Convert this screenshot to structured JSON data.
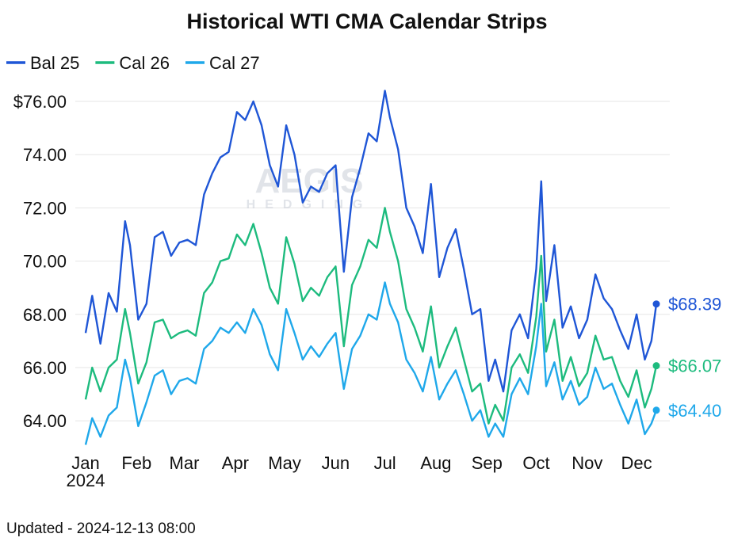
{
  "footer": "Updated - 2024-12-13 08:00",
  "watermark": {
    "line1": "AEGIS",
    "line2": "HEDGING"
  },
  "chart_data": {
    "type": "line",
    "title": "Historical WTI CMA Calendar Strips",
    "xlabel": "",
    "ylabel": "",
    "legend_position": "top-left",
    "grid": true,
    "x_range": [
      "2024-01-01",
      "2024-12-13"
    ],
    "ylim": [
      62.9,
      76.6
    ],
    "y_ticks": [
      64,
      66,
      68,
      70,
      72,
      74,
      76
    ],
    "y_tick_labels": [
      "64.00",
      "66.00",
      "68.00",
      "70.00",
      "72.00",
      "74.00",
      "$76.00"
    ],
    "x_ticks": [
      {
        "date": "2024-01-01",
        "label": "Jan",
        "sublabel": "2024"
      },
      {
        "date": "2024-02-01",
        "label": "Feb"
      },
      {
        "date": "2024-03-01",
        "label": "Mar"
      },
      {
        "date": "2024-04-01",
        "label": "Apr"
      },
      {
        "date": "2024-05-01",
        "label": "May"
      },
      {
        "date": "2024-06-01",
        "label": "Jun"
      },
      {
        "date": "2024-07-01",
        "label": "Jul"
      },
      {
        "date": "2024-08-01",
        "label": "Aug"
      },
      {
        "date": "2024-09-01",
        "label": "Sep"
      },
      {
        "date": "2024-10-01",
        "label": "Oct"
      },
      {
        "date": "2024-11-01",
        "label": "Nov"
      },
      {
        "date": "2024-12-01",
        "label": "Dec"
      }
    ],
    "x": [
      "2024-01-01",
      "2024-01-05",
      "2024-01-10",
      "2024-01-15",
      "2024-01-20",
      "2024-01-25",
      "2024-01-28",
      "2024-02-02",
      "2024-02-07",
      "2024-02-12",
      "2024-02-17",
      "2024-02-22",
      "2024-02-27",
      "2024-03-03",
      "2024-03-08",
      "2024-03-13",
      "2024-03-18",
      "2024-03-23",
      "2024-03-28",
      "2024-04-02",
      "2024-04-07",
      "2024-04-12",
      "2024-04-17",
      "2024-04-22",
      "2024-04-27",
      "2024-05-02",
      "2024-05-07",
      "2024-05-12",
      "2024-05-17",
      "2024-05-22",
      "2024-05-27",
      "2024-06-01",
      "2024-06-06",
      "2024-06-11",
      "2024-06-16",
      "2024-06-21",
      "2024-06-26",
      "2024-07-01",
      "2024-07-04",
      "2024-07-09",
      "2024-07-14",
      "2024-07-19",
      "2024-07-24",
      "2024-07-29",
      "2024-08-03",
      "2024-08-08",
      "2024-08-13",
      "2024-08-18",
      "2024-08-23",
      "2024-08-28",
      "2024-09-02",
      "2024-09-06",
      "2024-09-11",
      "2024-09-16",
      "2024-09-21",
      "2024-09-26",
      "2024-10-01",
      "2024-10-04",
      "2024-10-07",
      "2024-10-12",
      "2024-10-17",
      "2024-10-22",
      "2024-10-27",
      "2024-11-01",
      "2024-11-06",
      "2024-11-11",
      "2024-11-16",
      "2024-11-21",
      "2024-11-26",
      "2024-12-01",
      "2024-12-06",
      "2024-12-10",
      "2024-12-13"
    ],
    "series": [
      {
        "name": "Bal 25",
        "color": "#1f56d6",
        "end_label": "$68.39",
        "values": [
          67.3,
          68.7,
          66.9,
          68.8,
          68.1,
          71.5,
          70.6,
          67.8,
          68.4,
          70.9,
          71.1,
          70.2,
          70.7,
          70.8,
          70.6,
          72.5,
          73.3,
          73.9,
          74.1,
          75.6,
          75.3,
          76.0,
          75.1,
          73.6,
          72.8,
          75.1,
          74.0,
          72.2,
          72.8,
          72.6,
          73.3,
          73.6,
          69.6,
          72.4,
          73.5,
          74.8,
          74.5,
          76.4,
          75.4,
          74.2,
          72.0,
          71.3,
          70.3,
          72.9,
          69.4,
          70.5,
          71.2,
          69.7,
          68.0,
          68.2,
          65.5,
          66.3,
          65.1,
          67.4,
          68.0,
          67.1,
          69.7,
          73.0,
          68.5,
          70.6,
          67.5,
          68.3,
          67.1,
          67.8,
          69.5,
          68.6,
          68.2,
          67.4,
          66.7,
          68.0,
          66.3,
          67.0,
          68.39
        ]
      },
      {
        "name": "Cal 26",
        "color": "#1dbb7e",
        "end_label": "$66.07",
        "values": [
          64.8,
          66.0,
          65.1,
          66.0,
          66.3,
          68.2,
          67.3,
          65.4,
          66.2,
          67.7,
          67.8,
          67.1,
          67.3,
          67.4,
          67.2,
          68.8,
          69.2,
          70.0,
          70.1,
          71.0,
          70.6,
          71.4,
          70.3,
          69.0,
          68.4,
          70.9,
          69.9,
          68.5,
          69.0,
          68.7,
          69.4,
          69.8,
          66.8,
          69.1,
          69.8,
          70.8,
          70.5,
          72.0,
          71.1,
          70.0,
          68.2,
          67.5,
          66.6,
          68.3,
          66.0,
          66.8,
          67.5,
          66.3,
          65.1,
          65.4,
          63.9,
          64.6,
          64.0,
          66.0,
          66.5,
          65.8,
          67.9,
          70.2,
          66.6,
          67.8,
          65.5,
          66.4,
          65.3,
          65.8,
          67.2,
          66.3,
          66.4,
          65.5,
          64.9,
          65.9,
          64.5,
          65.2,
          66.07
        ]
      },
      {
        "name": "Cal 27",
        "color": "#1fa8ea",
        "end_label": "$64.40",
        "values": [
          63.1,
          64.1,
          63.4,
          64.2,
          64.5,
          66.3,
          65.6,
          63.8,
          64.7,
          65.7,
          65.9,
          65.0,
          65.5,
          65.6,
          65.4,
          66.7,
          67.0,
          67.5,
          67.3,
          67.7,
          67.3,
          68.2,
          67.6,
          66.5,
          65.9,
          68.2,
          67.3,
          66.3,
          66.8,
          66.4,
          66.9,
          67.3,
          65.2,
          66.7,
          67.2,
          68.0,
          67.8,
          69.2,
          68.4,
          67.7,
          66.3,
          65.8,
          65.1,
          66.4,
          64.8,
          65.4,
          65.9,
          65.0,
          64.0,
          64.4,
          63.4,
          63.9,
          63.4,
          65.0,
          65.6,
          65.0,
          66.8,
          68.4,
          65.3,
          66.2,
          64.8,
          65.5,
          64.6,
          64.9,
          66.0,
          65.2,
          65.4,
          64.6,
          63.9,
          64.8,
          63.5,
          63.9,
          64.4
        ]
      }
    ]
  }
}
